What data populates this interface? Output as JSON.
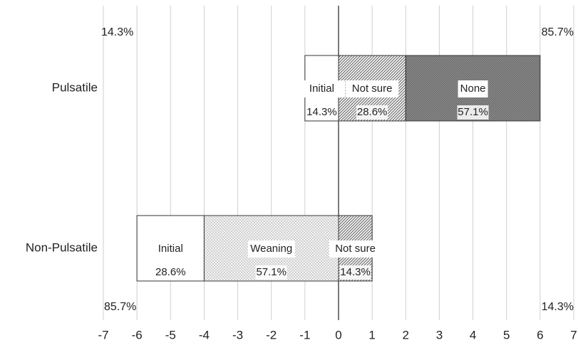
{
  "chart_data": {
    "type": "bar",
    "orientation": "horizontal",
    "stacked": true,
    "diverging": true,
    "categories": [
      "Pulsatile",
      "Non-Pulsatile"
    ],
    "xlim": [
      -7,
      7
    ],
    "x_ticks": [
      -7,
      -6,
      -5,
      -4,
      -3,
      -2,
      -1,
      0,
      1,
      2,
      3,
      4,
      5,
      6,
      7
    ],
    "grid": "vertical",
    "segments": [
      {
        "category": "Pulsatile",
        "name": "Initial",
        "start": -1,
        "end": 0,
        "percent_label": "14.3%",
        "fill": "white"
      },
      {
        "category": "Pulsatile",
        "name": "Not sure",
        "start": 0,
        "end": 2,
        "percent_label": "28.6%",
        "fill": "hatch"
      },
      {
        "category": "Pulsatile",
        "name": "None",
        "start": 2,
        "end": 6,
        "percent_label": "57.1%",
        "fill": "dark-hatch"
      },
      {
        "category": "Non-Pulsatile",
        "name": "Initial",
        "start": -6,
        "end": -4,
        "percent_label": "28.6%",
        "fill": "white"
      },
      {
        "category": "Non-Pulsatile",
        "name": "Weaning",
        "start": -4,
        "end": 0,
        "percent_label": "57.1%",
        "fill": "dots"
      },
      {
        "category": "Non-Pulsatile",
        "name": "Not sure",
        "start": 0,
        "end": 1,
        "percent_label": "14.3%",
        "fill": "hatch"
      }
    ],
    "totals": [
      {
        "category": "Pulsatile",
        "left": "14.3%",
        "right": "85.7%"
      },
      {
        "category": "Non-Pulsatile",
        "left": "85.7%",
        "right": "14.3%"
      }
    ]
  }
}
